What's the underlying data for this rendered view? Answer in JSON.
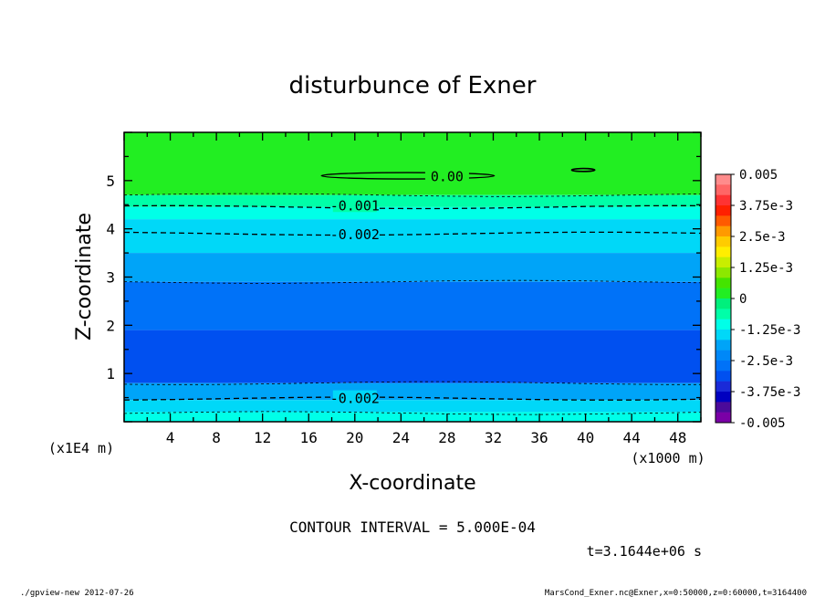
{
  "chart_data": {
    "type": "heatmap",
    "subtype": "filled contour",
    "title": "disturbunce of Exner",
    "xlabel": "X-coordinate",
    "ylabel": "Z-coordinate",
    "x_unit": "(x1000 m)",
    "y_unit": "(x1E4 m)",
    "xlim": [
      0,
      50
    ],
    "ylim": [
      0,
      6
    ],
    "x_ticks": [
      4,
      8,
      12,
      16,
      20,
      24,
      28,
      32,
      36,
      40,
      44,
      48
    ],
    "y_ticks": [
      1,
      2,
      3,
      4,
      5
    ],
    "contour_interval_label": "CONTOUR INTERVAL = 5.000E-04",
    "time_label": "t=3.1644e+06 s",
    "contour_labels": [
      {
        "text": "0.00",
        "x": 28,
        "z": 5.1
      },
      {
        "text": "-0.001",
        "x": 20,
        "z": 4.5
      },
      {
        "text": "-0.002",
        "x": 20,
        "z": 3.9
      },
      {
        "text": "-0.002",
        "x": 20,
        "z": 0.5
      }
    ],
    "bands_by_z": [
      {
        "z_from": 4.7,
        "z_to": 6.0,
        "value_range": [
          0,
          0.00125
        ],
        "color": "#22ee22"
      },
      {
        "z_from": 4.45,
        "z_to": 4.7,
        "value_range": [
          -0.00125,
          0
        ],
        "color": "#00ffa8"
      },
      {
        "z_from": 4.2,
        "z_to": 4.45,
        "value_range": [
          -0.0025,
          -0.00125
        ],
        "color": "#00ffe8"
      },
      {
        "z_from": 3.5,
        "z_to": 4.2,
        "value_range": [
          -0.0025,
          -0.00125
        ],
        "color": "#00d8f8"
      },
      {
        "z_from": 2.9,
        "z_to": 3.5,
        "value_range": [
          -0.003125,
          -0.0025
        ],
        "color": "#00a4f8"
      },
      {
        "z_from": 1.9,
        "z_to": 2.9,
        "value_range": [
          -0.00375,
          -0.003125
        ],
        "color": "#0072f8"
      },
      {
        "z_from": 0.8,
        "z_to": 1.9,
        "value_range": [
          -0.004375,
          -0.00375
        ],
        "color": "#0050f0"
      },
      {
        "z_from": 0.45,
        "z_to": 0.8,
        "value_range": [
          -0.003125,
          -0.0025
        ],
        "color": "#00a4f8"
      },
      {
        "z_from": 0.2,
        "z_to": 0.45,
        "value_range": [
          -0.0025,
          -0.00125
        ],
        "color": "#00d8f8"
      },
      {
        "z_from": 0.0,
        "z_to": 0.2,
        "value_range": [
          -0.00125,
          0
        ],
        "color": "#00ffe8"
      }
    ],
    "colorbar": {
      "labels": [
        "0.005",
        "3.75e-3",
        "2.5e-3",
        "1.25e-3",
        "0",
        "-1.25e-3",
        "-2.5e-3",
        "-3.75e-3",
        "-0.005"
      ],
      "colors": [
        "#ff8c8c",
        "#ff6666",
        "#ff3333",
        "#ff2000",
        "#ff5a00",
        "#ff9a00",
        "#ffcc00",
        "#ffee00",
        "#c8ee00",
        "#8ce800",
        "#44e400",
        "#22ee22",
        "#00f07c",
        "#00ffa8",
        "#00ffe8",
        "#00d8f8",
        "#00a4f8",
        "#0088f8",
        "#0072f8",
        "#0050f0",
        "#1a2ad8",
        "#0000c0",
        "#4b0a9a",
        "#7a00a6"
      ]
    }
  },
  "footer": {
    "left": "./gpview-new  2012-07-26",
    "right": "MarsCond_Exner.nc@Exner,x=0:50000,z=0:60000,t=3164400"
  }
}
